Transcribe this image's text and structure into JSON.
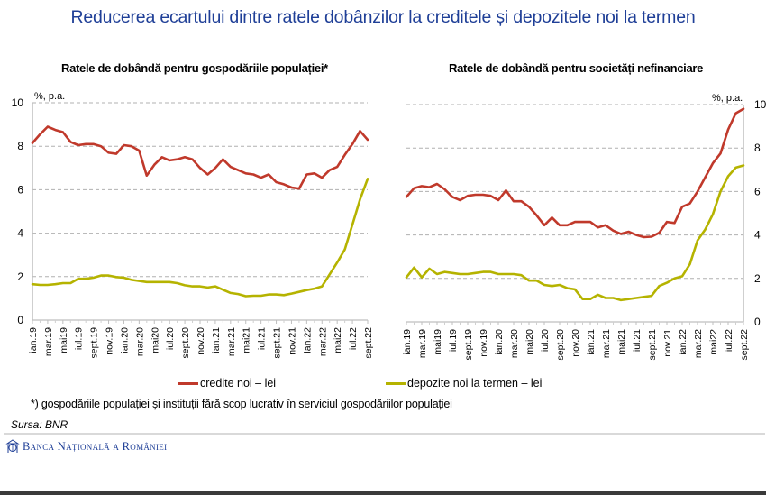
{
  "main_title": "Reducerea ecartului dintre ratele dobânzilor la creditele și depozitele noi la termen",
  "legend": {
    "credite": {
      "label": "credite noi – lei",
      "color": "#c0392b"
    },
    "depozite": {
      "label": "depozite noi la termen – lei",
      "color": "#b5b300"
    }
  },
  "footnote": "*) gospodăriile populației și instituții fără scop lucrativ în serviciul gospodăriilor populației",
  "source": "Sursa: BNR",
  "logo_text": "Banca Națională a României",
  "chart_data": [
    {
      "type": "line",
      "title": "Ratele de dobândă pentru gospodăriile populației*",
      "ylabel": "%, p.a.",
      "yaxis_side": "left",
      "ylim": [
        0,
        10
      ],
      "yticks": [
        0,
        2,
        4,
        6,
        8,
        10
      ],
      "grid": true,
      "x_tick_labels": [
        "ian.19",
        "mar.19",
        "mai19",
        "iul.19",
        "sept.19",
        "nov.19",
        "ian.20",
        "mar.20",
        "mai20",
        "iul.20",
        "sept.20",
        "nov.20",
        "ian.21",
        "mar.21",
        "mai21",
        "iul.21",
        "sept.21",
        "nov.21",
        "ian.22",
        "mar.22",
        "mai22",
        "iul.22",
        "sept.22"
      ],
      "n_points": 45,
      "series": [
        {
          "name": "credite noi – lei",
          "color": "#c0392b",
          "values": [
            8.15,
            8.55,
            8.9,
            8.75,
            8.65,
            8.2,
            8.05,
            8.1,
            8.1,
            8.0,
            7.7,
            7.65,
            8.05,
            8.0,
            7.8,
            6.65,
            7.15,
            7.5,
            7.35,
            7.4,
            7.5,
            7.4,
            7.0,
            6.7,
            7.0,
            7.4,
            7.05,
            6.9,
            6.75,
            6.7,
            6.55,
            6.7,
            6.35,
            6.25,
            6.1,
            6.05,
            6.7,
            6.75,
            6.55,
            6.9,
            7.05,
            7.6,
            8.1,
            8.7,
            8.3
          ]
        },
        {
          "name": "depozite noi la termen – lei",
          "color": "#b5b300",
          "values": [
            1.65,
            1.62,
            1.62,
            1.65,
            1.7,
            1.7,
            1.9,
            1.9,
            1.95,
            2.05,
            2.05,
            1.98,
            1.95,
            1.85,
            1.8,
            1.75,
            1.75,
            1.75,
            1.75,
            1.7,
            1.6,
            1.55,
            1.55,
            1.5,
            1.55,
            1.4,
            1.25,
            1.2,
            1.1,
            1.12,
            1.12,
            1.18,
            1.18,
            1.15,
            1.22,
            1.3,
            1.38,
            1.45,
            1.55,
            2.1,
            2.65,
            3.25,
            4.4,
            5.55,
            6.5
          ]
        }
      ]
    },
    {
      "type": "line",
      "title": "Ratele de dobândă pentru societăți nefinanciare",
      "ylabel": "%, p.a.",
      "yaxis_side": "right",
      "ylim": [
        0,
        10
      ],
      "yticks": [
        0,
        2,
        4,
        6,
        8,
        10
      ],
      "grid": true,
      "x_tick_labels": [
        "ian.19",
        "mar.19",
        "mai19",
        "iul.19",
        "sept.19",
        "nov.19",
        "ian.20",
        "mar.20",
        "mai20",
        "iul.20",
        "sept.20",
        "nov.20",
        "ian.21",
        "mar.21",
        "mai21",
        "iul.21",
        "sept.21",
        "nov.21",
        "ian.22",
        "mar.22",
        "mai22",
        "iul.22",
        "sept.22"
      ],
      "n_points": 45,
      "series": [
        {
          "name": "credite noi – lei",
          "color": "#c0392b",
          "values": [
            5.75,
            6.15,
            6.25,
            6.2,
            6.35,
            6.1,
            5.75,
            5.6,
            5.8,
            5.85,
            5.85,
            5.8,
            5.6,
            6.05,
            5.55,
            5.55,
            5.3,
            4.9,
            4.45,
            4.8,
            4.45,
            4.45,
            4.6,
            4.6,
            4.6,
            4.35,
            4.45,
            4.2,
            4.05,
            4.15,
            4.0,
            3.9,
            3.92,
            4.1,
            4.6,
            4.55,
            5.3,
            5.45,
            6.0,
            6.65,
            7.3,
            7.75,
            8.85,
            9.6,
            9.8
          ]
        },
        {
          "name": "depozite noi la termen – lei",
          "color": "#b5b300",
          "values": [
            2.05,
            2.5,
            2.05,
            2.45,
            2.2,
            2.3,
            2.25,
            2.2,
            2.2,
            2.25,
            2.3,
            2.3,
            2.2,
            2.2,
            2.2,
            2.15,
            1.9,
            1.9,
            1.7,
            1.65,
            1.7,
            1.55,
            1.5,
            1.05,
            1.05,
            1.25,
            1.1,
            1.1,
            1.0,
            1.05,
            1.1,
            1.15,
            1.2,
            1.65,
            1.8,
            2.0,
            2.1,
            2.65,
            3.75,
            4.25,
            4.95,
            6.0,
            6.7,
            7.1,
            7.2
          ]
        }
      ]
    }
  ]
}
